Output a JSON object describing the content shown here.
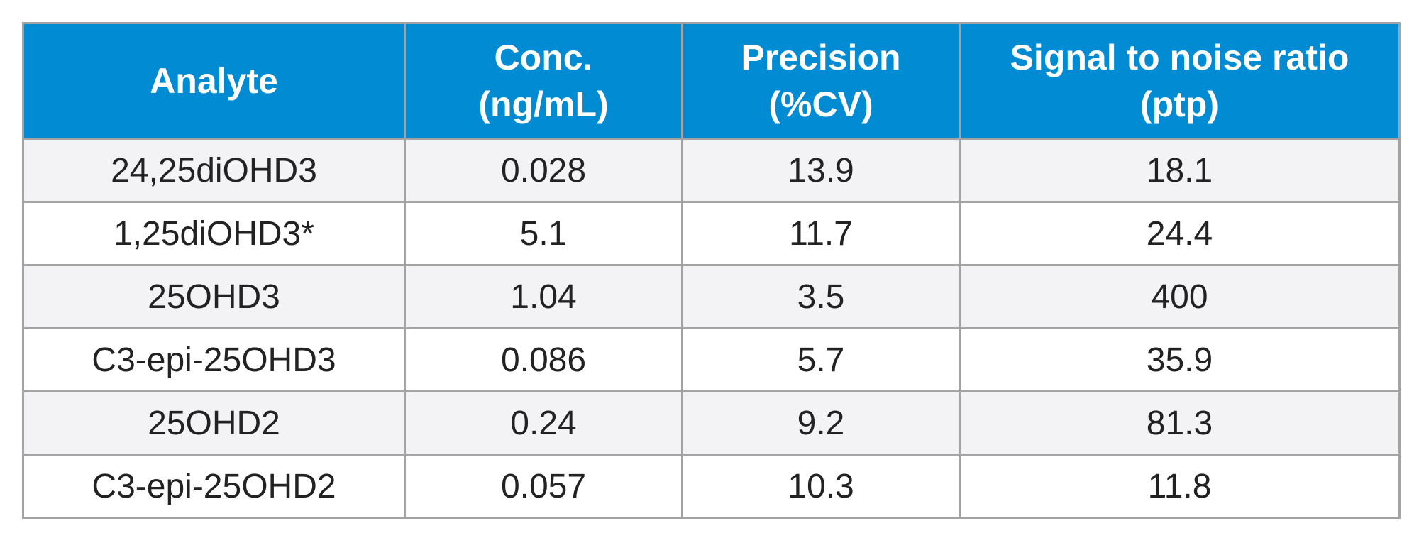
{
  "colors": {
    "header_bg": "#008bd2",
    "header_text": "#ffffff",
    "row_shade": "#f3f3f5",
    "border": "#a3a3a3",
    "body_text": "#222222"
  },
  "table": {
    "headers": [
      {
        "line1": "Analyte",
        "line2": ""
      },
      {
        "line1": "Conc.",
        "line2": "(ng/mL)"
      },
      {
        "line1": "Precision",
        "line2": "(%CV)"
      },
      {
        "line1": "Signal to noise ratio",
        "line2": "(ptp)"
      }
    ],
    "rows": [
      [
        "24,25diOHD3",
        "0.028",
        "13.9",
        "18.1"
      ],
      [
        "1,25diOHD3*",
        "5.1",
        "11.7",
        "24.4"
      ],
      [
        "25OHD3",
        "1.04",
        "3.5",
        "400"
      ],
      [
        "C3-epi-25OHD3",
        "0.086",
        "5.7",
        "35.9"
      ],
      [
        "25OHD2",
        "0.24",
        "9.2",
        "81.3"
      ],
      [
        "C3-epi-25OHD2",
        "0.057",
        "10.3",
        "11.8"
      ]
    ]
  }
}
